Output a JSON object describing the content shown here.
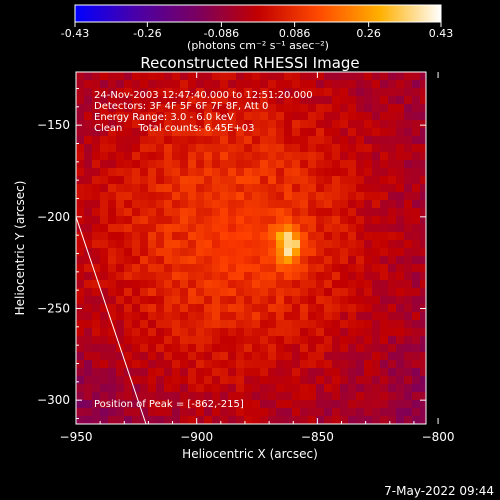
{
  "chart_data": {
    "type": "heatmap",
    "title": "Reconstructed RHESSI Image",
    "colorbar": {
      "min": -0.43,
      "max": 0.43,
      "ticks": [
        "-0.43",
        "-0.26",
        "-0.086",
        "0.086",
        "0.26",
        "0.43"
      ],
      "unit_label": "(photons cm⁻² s⁻¹ asec⁻²)",
      "colormap": [
        "#0000ff",
        "#4a00a8",
        "#7a0060",
        "#c20000",
        "#ff4a00",
        "#ffb000",
        "#ffffff"
      ]
    },
    "xlabel": "Heliocentric X (arcsec)",
    "ylabel": "Heliocentric Y (arcsec)",
    "xlim": [
      -950,
      -805
    ],
    "ylim": [
      -313,
      -121
    ],
    "xticks": [
      -950,
      -900,
      -850,
      -800
    ],
    "yticks": [
      -300,
      -250,
      -200,
      -150
    ],
    "annotations": [
      "24-Nov-2003 12:47:40.000 to 12:51:20.000",
      "Detectors: 3F 4F 5F 6F 7F 8F, Att 0",
      "Energy Range: 3.0 - 6.0 keV",
      "Clean     Total counts: 6.45E+03"
    ],
    "peak_label": "Position of Peak = [-862,-215]",
    "peak": {
      "x": -862,
      "y": -215,
      "value": 0.43
    },
    "limb": [
      [
        -950,
        -200
      ],
      [
        -921,
        -313
      ]
    ]
  },
  "footer": {
    "date": "7-May-2022 09:44"
  }
}
